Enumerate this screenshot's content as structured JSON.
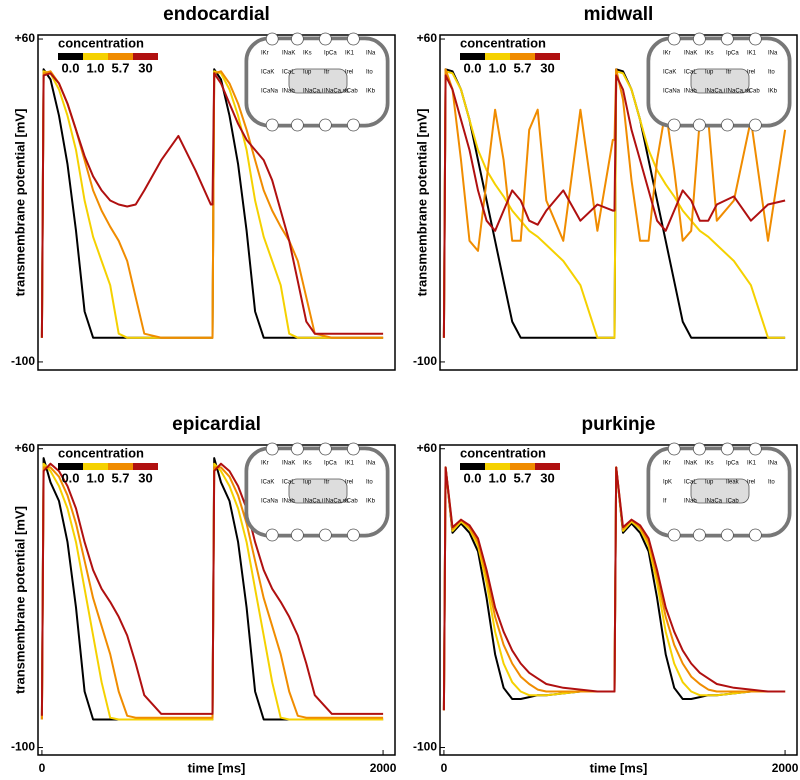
{
  "chart_data": [
    {
      "type": "line",
      "title": "endocardial",
      "ylabel": "transmembrane potential [mV]",
      "legend_title": "concentration",
      "inset_labels": [
        "IKr",
        "INaK",
        "IKs",
        "IpCa",
        "IK1",
        "INa",
        "ICaK",
        "ICaL",
        "Iup",
        "Itr",
        "Irel",
        "Ito",
        "ICaNa",
        "INab",
        "INaCa,i",
        "INaCa,ss",
        "ICab",
        "IKb"
      ],
      "x": [
        0,
        10,
        50,
        100,
        150,
        200,
        250,
        300,
        350,
        400,
        450,
        500,
        550,
        600,
        700,
        800,
        900,
        990,
        1000,
        1010,
        1050,
        1100,
        1150,
        1200,
        1250,
        1300,
        1350,
        1400,
        1450,
        1500,
        1550,
        1600,
        1700,
        1800,
        1900,
        2000
      ],
      "xlim": [
        -23,
        2070
      ],
      "ylim": [
        -104,
        62
      ],
      "yticks": [
        {
          "value": 60,
          "label": "+60"
        },
        -100
      ],
      "series": [
        {
          "name": "0.0",
          "color": "#000000",
          "values": [
            -88,
            45,
            40,
            22,
            -2,
            -35,
            -75,
            -88,
            -88,
            -88,
            -88,
            -88,
            -88,
            -88,
            -88,
            -88,
            -88,
            -88,
            -88,
            45,
            40,
            22,
            -2,
            -35,
            -75,
            -88,
            -88,
            -88,
            -88,
            -88,
            -88,
            -88,
            -88,
            -88,
            -88,
            -88
          ]
        },
        {
          "name": "1.0",
          "color": "#f5d100",
          "values": [
            -88,
            44,
            43,
            35,
            22,
            5,
            -20,
            -38,
            -50,
            -62,
            -86,
            -88,
            -88,
            -88,
            -88,
            -88,
            -88,
            -88,
            -88,
            44,
            43,
            35,
            22,
            5,
            -20,
            -38,
            -50,
            -62,
            -86,
            -88,
            -88,
            -88,
            -88,
            -88,
            -88,
            -88
          ]
        },
        {
          "name": "5.7",
          "color": "#f08c00",
          "values": [
            -88,
            43,
            44,
            38,
            28,
            15,
            0,
            -15,
            -25,
            -33,
            -40,
            -50,
            -68,
            -86,
            -88,
            -88,
            -88,
            -88,
            -88,
            43,
            44,
            38,
            28,
            15,
            0,
            -15,
            -25,
            -33,
            -40,
            -50,
            -68,
            -86,
            -88,
            -88,
            -88,
            -88
          ]
        },
        {
          "name": "30",
          "color": "#b01010",
          "values": [
            -88,
            42,
            43,
            38,
            28,
            15,
            2,
            -8,
            -15,
            -20,
            -22,
            -23,
            -22,
            -15,
            0,
            12,
            -5,
            -22,
            -22,
            43,
            38,
            28,
            18,
            10,
            5,
            0,
            -10,
            -25,
            -40,
            -60,
            -80,
            -86,
            -86,
            -86,
            -86,
            -86
          ]
        }
      ]
    },
    {
      "type": "line",
      "title": "midwall",
      "ylabel": "transmembrane potential [mV]",
      "legend_title": "concentration",
      "inset_labels": [
        "IKr",
        "INaK",
        "IKs",
        "IpCa",
        "IK1",
        "INa",
        "ICaK",
        "ICaL",
        "Iup",
        "Itr",
        "Irel",
        "Ito",
        "ICaNa",
        "INab",
        "INaCa,i",
        "INaCa,ss",
        "ICab",
        "IKb"
      ],
      "x": [
        0,
        10,
        50,
        100,
        150,
        200,
        250,
        300,
        350,
        400,
        450,
        500,
        550,
        600,
        700,
        800,
        900,
        990,
        1000,
        1010,
        1050,
        1100,
        1150,
        1200,
        1250,
        1300,
        1350,
        1400,
        1450,
        1500,
        1550,
        1600,
        1700,
        1800,
        1900,
        2000
      ],
      "xlim": [
        -23,
        2070
      ],
      "ylim": [
        -104,
        62
      ],
      "yticks": [
        {
          "value": 60,
          "label": "+60"
        },
        -100
      ],
      "series": [
        {
          "name": "0.0",
          "color": "#000000",
          "values": [
            -88,
            45,
            44,
            35,
            20,
            0,
            -20,
            -40,
            -60,
            -80,
            -88,
            -88,
            -88,
            -88,
            -88,
            -88,
            -88,
            -88,
            -88,
            45,
            44,
            35,
            20,
            0,
            -20,
            -40,
            -60,
            -80,
            -88,
            -88,
            -88,
            -88,
            -88,
            -88,
            -88,
            -88
          ]
        },
        {
          "name": "1.0",
          "color": "#f5d100",
          "values": [
            -88,
            44,
            43,
            35,
            20,
            5,
            -5,
            -12,
            -18,
            -25,
            -30,
            -35,
            -38,
            -42,
            -50,
            -62,
            -88,
            -88,
            -88,
            44,
            43,
            35,
            20,
            5,
            -5,
            -12,
            -18,
            -25,
            -30,
            -35,
            -38,
            -42,
            -50,
            -62,
            -88,
            -88
          ]
        },
        {
          "name": "5.7",
          "color": "#f08c00",
          "values": [
            -88,
            45,
            35,
            0,
            -40,
            -45,
            -10,
            25,
            0,
            -40,
            -40,
            15,
            25,
            -20,
            -40,
            25,
            -35,
            10,
            10,
            45,
            30,
            -10,
            -40,
            -40,
            0,
            25,
            -5,
            -40,
            -35,
            20,
            20,
            -30,
            -20,
            20,
            -40,
            15
          ]
        },
        {
          "name": "30",
          "color": "#b01010",
          "values": [
            -88,
            42,
            35,
            20,
            5,
            -15,
            -30,
            -35,
            -25,
            -15,
            -20,
            -30,
            -32,
            -25,
            -15,
            -30,
            -22,
            -25,
            -25,
            42,
            35,
            15,
            0,
            -15,
            -30,
            -35,
            -25,
            -15,
            -20,
            -30,
            -30,
            -22,
            -18,
            -30,
            -22,
            -20
          ]
        }
      ]
    },
    {
      "type": "line",
      "title": "epicardial",
      "ylabel": "transmembrane potential [mV]",
      "xlabel": "time [ms]",
      "legend_title": "concentration",
      "inset_labels": [
        "IKr",
        "INaK",
        "IKs",
        "IpCa",
        "IK1",
        "INa",
        "ICaK",
        "ICaL",
        "Iup",
        "Itr",
        "Irel",
        "Ito",
        "ICaNa",
        "INab",
        "INaCa,i",
        "INaCa,ss",
        "ICab",
        "IKb"
      ],
      "x": [
        0,
        10,
        50,
        100,
        150,
        200,
        250,
        300,
        350,
        400,
        450,
        500,
        550,
        600,
        700,
        800,
        900,
        990,
        1000,
        1010,
        1050,
        1100,
        1150,
        1200,
        1250,
        1300,
        1350,
        1400,
        1450,
        1500,
        1550,
        1600,
        1700,
        1800,
        1900,
        2000
      ],
      "xlim": [
        -23,
        2070
      ],
      "ylim": [
        -104,
        62
      ],
      "xticks": [
        0,
        2000
      ],
      "yticks": [
        {
          "value": 60,
          "label": "+60"
        },
        -100
      ],
      "series": [
        {
          "name": "0.0",
          "color": "#000000",
          "values": [
            -85,
            55,
            42,
            32,
            10,
            -25,
            -70,
            -85,
            -85,
            -85,
            -85,
            -85,
            -85,
            -85,
            -85,
            -85,
            -85,
            -85,
            -85,
            55,
            42,
            32,
            10,
            -25,
            -70,
            -85,
            -85,
            -85,
            -85,
            -85,
            -85,
            -85,
            -85,
            -85,
            -85,
            -85
          ]
        },
        {
          "name": "1.0",
          "color": "#f5d100",
          "values": [
            -85,
            52,
            48,
            40,
            28,
            10,
            -15,
            -40,
            -65,
            -84,
            -85,
            -85,
            -85,
            -85,
            -85,
            -85,
            -85,
            -85,
            -85,
            52,
            48,
            40,
            28,
            10,
            -15,
            -40,
            -65,
            -84,
            -85,
            -85,
            -85,
            -85,
            -85,
            -85,
            -85,
            -85
          ]
        },
        {
          "name": "5.7",
          "color": "#f08c00",
          "values": [
            -85,
            50,
            50,
            45,
            35,
            20,
            0,
            -20,
            -35,
            -50,
            -70,
            -83,
            -84,
            -84,
            -84,
            -84,
            -84,
            -84,
            -84,
            50,
            50,
            45,
            35,
            20,
            0,
            -20,
            -35,
            -50,
            -70,
            -83,
            -84,
            -84,
            -84,
            -84,
            -84,
            -84
          ]
        },
        {
          "name": "30",
          "color": "#b01010",
          "values": [
            -83,
            48,
            52,
            48,
            40,
            28,
            10,
            -5,
            -15,
            -22,
            -30,
            -40,
            -55,
            -72,
            -82,
            -82,
            -82,
            -82,
            -82,
            48,
            52,
            48,
            40,
            28,
            10,
            -5,
            -15,
            -22,
            -30,
            -40,
            -55,
            -72,
            -82,
            -82,
            -82,
            -82
          ]
        }
      ]
    },
    {
      "type": "line",
      "title": "purkinje",
      "xlabel": "time [ms]",
      "legend_title": "concentration",
      "inset_labels": [
        "IKr",
        "INaK",
        "IKs",
        "IpCa",
        "IK1",
        "INa",
        "IpK",
        "ICaL",
        "Iup",
        "Ileak",
        "Irel",
        "Ito",
        "If",
        "INab",
        "INaCa",
        "ICab"
      ],
      "x": [
        0,
        10,
        50,
        100,
        150,
        200,
        250,
        300,
        350,
        400,
        450,
        500,
        550,
        600,
        700,
        800,
        900,
        990,
        1000,
        1010,
        1050,
        1100,
        1150,
        1200,
        1250,
        1300,
        1350,
        1400,
        1450,
        1500,
        1550,
        1600,
        1700,
        1800,
        1900,
        2000
      ],
      "xlim": [
        -23,
        2070
      ],
      "ylim": [
        -104,
        62
      ],
      "xticks": [
        0,
        2000
      ],
      "yticks": [
        {
          "value": 60,
          "label": "+60"
        },
        -100
      ],
      "series": [
        {
          "name": "0.0",
          "color": "#000000",
          "values": [
            -80,
            50,
            15,
            20,
            15,
            5,
            -20,
            -50,
            -68,
            -74,
            -74,
            -73,
            -72,
            -72,
            -71,
            -70,
            -70,
            -70,
            -70,
            50,
            15,
            20,
            15,
            5,
            -20,
            -50,
            -68,
            -74,
            -74,
            -73,
            -72,
            -72,
            -71,
            -70,
            -70,
            -70
          ]
        },
        {
          "name": "1.0",
          "color": "#f5d100",
          "values": [
            -80,
            50,
            16,
            21,
            17,
            8,
            -12,
            -38,
            -55,
            -65,
            -70,
            -72,
            -72,
            -72,
            -71,
            -70,
            -70,
            -70,
            -70,
            50,
            16,
            21,
            17,
            8,
            -12,
            -38,
            -55,
            -65,
            -70,
            -72,
            -72,
            -72,
            -71,
            -70,
            -70,
            -70
          ]
        },
        {
          "name": "5.7",
          "color": "#f08c00",
          "values": [
            -80,
            50,
            17,
            22,
            18,
            10,
            -8,
            -30,
            -45,
            -55,
            -62,
            -66,
            -69,
            -70,
            -70,
            -70,
            -70,
            -70,
            -70,
            50,
            17,
            22,
            18,
            10,
            -8,
            -30,
            -45,
            -55,
            -62,
            -66,
            -69,
            -70,
            -70,
            -70,
            -70,
            -70
          ]
        },
        {
          "name": "30",
          "color": "#b01010",
          "values": [
            -80,
            50,
            18,
            22,
            19,
            12,
            -5,
            -25,
            -38,
            -48,
            -55,
            -60,
            -63,
            -66,
            -68,
            -69,
            -70,
            -70,
            -70,
            50,
            18,
            22,
            19,
            12,
            -5,
            -25,
            -38,
            -48,
            -55,
            -60,
            -63,
            -66,
            -68,
            -69,
            -70,
            -70
          ]
        }
      ]
    }
  ]
}
